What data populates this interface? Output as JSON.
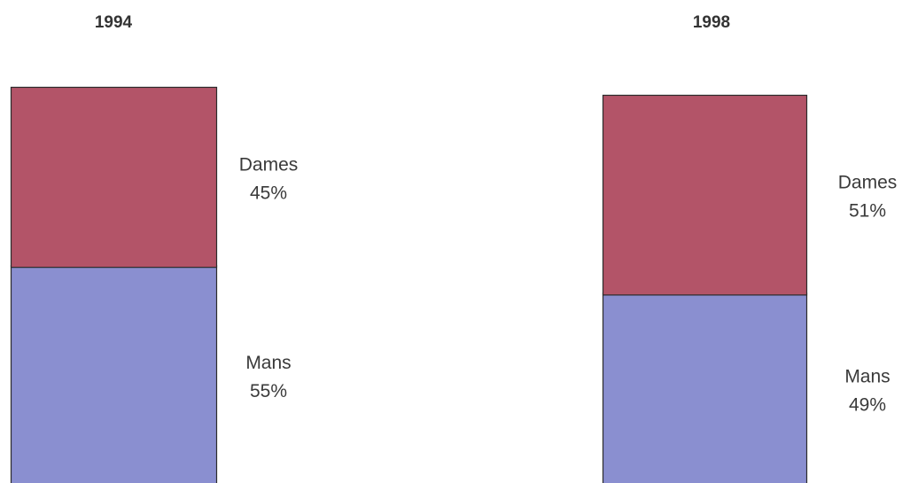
{
  "chart_data": {
    "type": "bar",
    "stacked": true,
    "normalized": true,
    "categories": [
      "1994",
      "1998"
    ],
    "series": [
      {
        "name": "Mans",
        "values": [
          55,
          49
        ],
        "color": "#8a8fd0"
      },
      {
        "name": "Dames",
        "values": [
          45,
          51
        ],
        "color": "#b35468"
      }
    ],
    "value_labels": [
      [
        "55%",
        "49%"
      ],
      [
        "45%",
        "51%"
      ]
    ],
    "ylim": [
      0,
      100
    ],
    "grid": false,
    "legend": "none",
    "title": "",
    "xlabel": "",
    "ylabel": ""
  }
}
